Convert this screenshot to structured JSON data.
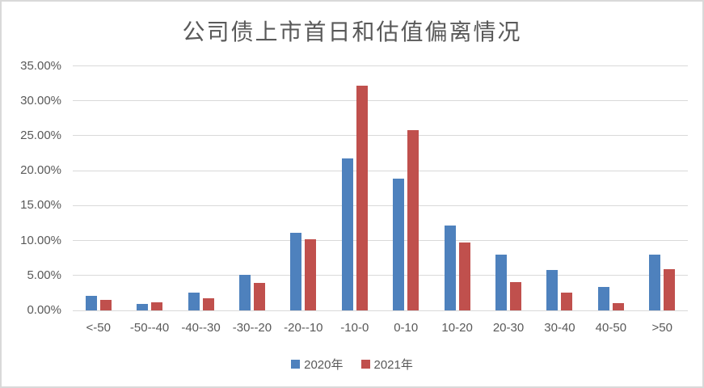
{
  "chart_data": {
    "type": "bar",
    "title": "公司债上市首日和估值偏离情况",
    "categories": [
      "<-50",
      "-50--40",
      "-40--30",
      "-30--20",
      "-20--10",
      "-10-0",
      "0-10",
      "10-20",
      "20-30",
      "30-40",
      "40-50",
      ">50"
    ],
    "series": [
      {
        "name": "2020年",
        "color": "#4E81BD",
        "values": [
          2.1,
          0.9,
          2.6,
          5.1,
          11.1,
          21.7,
          18.9,
          12.1,
          8.0,
          5.8,
          3.4,
          8.0
        ]
      },
      {
        "name": "2021年",
        "color": "#C0504D",
        "values": [
          1.5,
          1.2,
          1.7,
          3.9,
          10.2,
          32.2,
          25.8,
          9.7,
          4.1,
          2.6,
          1.0,
          5.9
        ]
      }
    ],
    "xlabel": "",
    "ylabel": "",
    "ylim": [
      0,
      35
    ],
    "y_tick_step": 5,
    "y_tick_labels": [
      "35.00%",
      "30.00%",
      "25.00%",
      "20.00%",
      "15.00%",
      "10.00%",
      "5.00%",
      "0.00%"
    ],
    "grid": true,
    "legend_position": "bottom",
    "colors": {
      "text": "#595959",
      "gridline": "#D9D9D9",
      "frame_border": "#D9D9D9",
      "background": "#FFFFFF"
    }
  }
}
